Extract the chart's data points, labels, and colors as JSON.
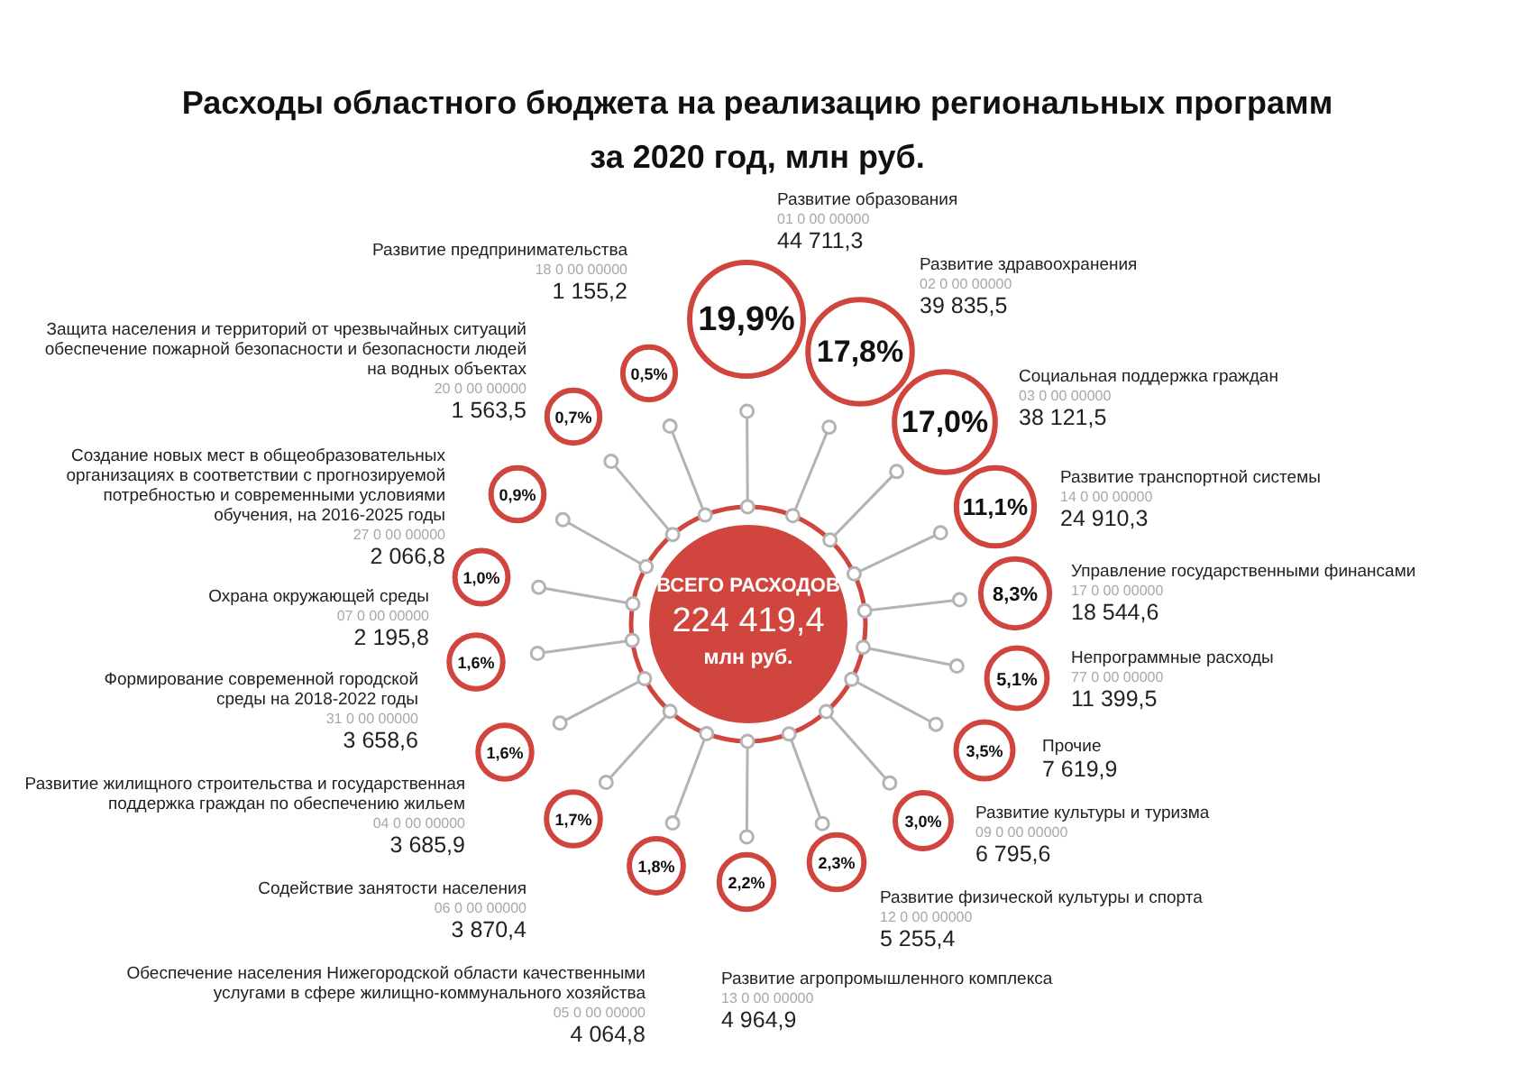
{
  "chart_data": {
    "type": "other",
    "title": "Расходы областного бюджета на реализацию региональных программ за 2020 год, млн руб.",
    "categories": [
      "Развитие образования",
      "Развитие здравоохранения",
      "Социальная поддержка граждан",
      "Развитие транспортной системы",
      "Управление государственными финансами",
      "Непрограммные расходы",
      "Прочие",
      "Развитие культуры и туризма",
      "Развитие физической культуры и спорта",
      "Развитие агропромышленного комплекса",
      "Обеспечение населения Нижегородской области качественными услугами в сфере жилищно-коммунального хозяйства",
      "Содействие занятости населения",
      "Развитие жилищного строительства и государственная поддержка граждан по обеспечению жильем",
      "Формирование современной городской среды на 2018-2022 годы",
      "Охрана окружающей среды",
      "Создание новых мест в общеобразовательных организациях в соответствии с прогнозируемой потребностью и современными условиями обучения, на 2016-2025 годы",
      "Защита населения и территорий от чрезвычайных ситуаций обеспечение пожарной безопасности и безопасности людей на водных объектах",
      "Развитие предпринимательства"
    ],
    "series": [
      {
        "color": "#d0453d",
        "values": [
          19.9,
          17.8,
          17.0,
          11.1,
          8.3,
          5.1,
          3.5,
          3.0,
          2.3,
          2.2,
          1.8,
          1.7,
          1.6,
          1.6,
          1.0,
          0.9,
          0.7,
          0.5
        ],
        "value_labels": [
          "19,9%",
          "17,8%",
          "17,0%",
          "11,1%",
          "8,3%",
          "5,1%",
          "3,5%",
          "3,0%",
          "2,3%",
          "2,2%",
          "1,8%",
          "1,7%",
          "1,6%",
          "1,6%",
          "1,0%",
          "0,9%",
          "0,7%",
          "0,5%"
        ]
      },
      {
        "color": "#222222",
        "values": [
          44711.3,
          39835.5,
          38121.5,
          24910.3,
          18544.6,
          11399.5,
          7619.9,
          6795.6,
          5255.4,
          4964.9,
          4064.8,
          3870.4,
          3685.9,
          3658.6,
          2195.8,
          2066.8,
          1563.5,
          1155.2
        ],
        "value_labels": [
          "44 711,3",
          "39 835,5",
          "38 121,5",
          "24 910,3",
          "18 544,6",
          "11 399,5",
          "7 619,9",
          "6 795,6",
          "5 255,4",
          "4 964,9",
          "4 064,8",
          "3 870,4",
          "3 685,9",
          "3 658,6",
          "2 195,8",
          "2 066,8",
          "1 563,5",
          "1 155,2"
        ]
      }
    ],
    "annotations": [
      "ВСЕГО РАСХОДОВ\n224 419,4\nмлн руб.",
      {
        "text": "01 0 00 00000",
        "x": "Развитие образования"
      },
      {
        "text": "02 0 00 00000",
        "x": "Развитие здравоохранения"
      },
      {
        "text": "03 0 00 00000",
        "x": "Социальная поддержка граждан"
      },
      {
        "text": "14 0 00 00000",
        "x": "Развитие транспортной системы"
      },
      {
        "text": "17 0 00 00000",
        "x": "Управление государственными финансами"
      },
      {
        "text": "77 0 00 00000",
        "x": "Непрограммные расходы"
      },
      {
        "text": "09 0 00 00000",
        "x": "Развитие культуры и туризма"
      },
      {
        "text": "12 0 00 00000",
        "x": "Развитие физической культуры и спорта"
      },
      {
        "text": "13 0 00 00000",
        "x": "Развитие агропромышленного комплекса"
      },
      {
        "text": "05 0 00 00000",
        "x": "Обеспечение населения Нижегородской области качественными услугами в сфере жилищно-коммунального хозяйства"
      },
      {
        "text": "06 0 00 00000",
        "x": "Содействие занятости населения"
      },
      {
        "text": "04 0 00 00000",
        "x": "Развитие жилищного строительства и государственная поддержка граждан по обеспечению жильем"
      },
      {
        "text": "31 0 00 00000",
        "x": "Формирование современной городской среды на 2018-2022 годы"
      },
      {
        "text": "07 0 00 00000",
        "x": "Охрана окружающей среды"
      },
      {
        "text": "27 0 00 00000",
        "x": "Создание новых мест в общеобразовательных организациях в соответствии с прогнозируемой потребностью и современными условиями обучения, на 2016-2025 годы"
      },
      {
        "text": "20 0 00 00000",
        "x": "Защита населения и территорий от чрезвычайных ситуаций обеспечение пожарной безопасности и безопасности людей на водных объектах"
      },
      {
        "text": "18 0 00 00000",
        "x": "Развитие предпринимательства"
      }
    ]
  }
}
